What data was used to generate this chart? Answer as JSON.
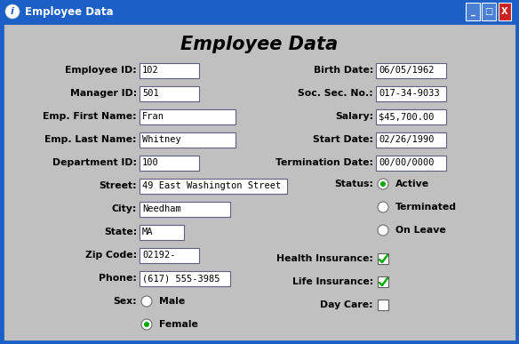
{
  "window_title": "Employee Data",
  "bg_color": "#c0c0c0",
  "titlebar_color": "#1c5fc7",
  "form_title": "Employee Data",
  "left_fields": [
    {
      "label": "Employee ID:",
      "value": "102",
      "box_width": 0.115
    },
    {
      "label": "Manager ID:",
      "value": "501",
      "box_width": 0.115
    },
    {
      "label": "Emp. First Name:",
      "value": "Fran",
      "box_width": 0.185
    },
    {
      "label": "Emp. Last Name:",
      "value": "Whitney",
      "box_width": 0.185
    },
    {
      "label": "Department ID:",
      "value": "100",
      "box_width": 0.115
    },
    {
      "label": "Street:",
      "value": "49 East Washington Street",
      "box_width": 0.285
    },
    {
      "label": "City:",
      "value": "Needham",
      "box_width": 0.175
    },
    {
      "label": "State:",
      "value": "MA",
      "box_width": 0.085
    },
    {
      "label": "Zip Code:",
      "value": "02192-",
      "box_width": 0.115
    },
    {
      "label": "Phone:",
      "value": "(617) 555-3985",
      "box_width": 0.175
    }
  ],
  "sex_label": "Sex:",
  "sex_options": [
    "Male",
    "Female"
  ],
  "sex_selected": 1,
  "right_fields": [
    {
      "label": "Birth Date:",
      "value": "06/05/1962",
      "box_width": 0.135
    },
    {
      "label": "Soc. Sec. No.:",
      "value": "017-34-9033",
      "box_width": 0.135
    },
    {
      "label": "Salary:",
      "value": "$45,700.00",
      "box_width": 0.135
    },
    {
      "label": "Start Date:",
      "value": "02/26/1990",
      "box_width": 0.135
    },
    {
      "label": "Termination Date:",
      "value": "00/00/0000",
      "box_width": 0.135
    }
  ],
  "status_label": "Status:",
  "status_options": [
    "Active",
    "Terminated",
    "On Leave"
  ],
  "status_selected": 0,
  "checkboxes": [
    {
      "label": "Health Insurance:",
      "checked": true
    },
    {
      "label": "Life Insurance:",
      "checked": true
    },
    {
      "label": "Day Care:",
      "checked": false
    }
  ],
  "label_fontsize": 7.8,
  "value_fontsize": 7.5,
  "title_fontsize": 15,
  "titlebar_fontsize": 8.5
}
